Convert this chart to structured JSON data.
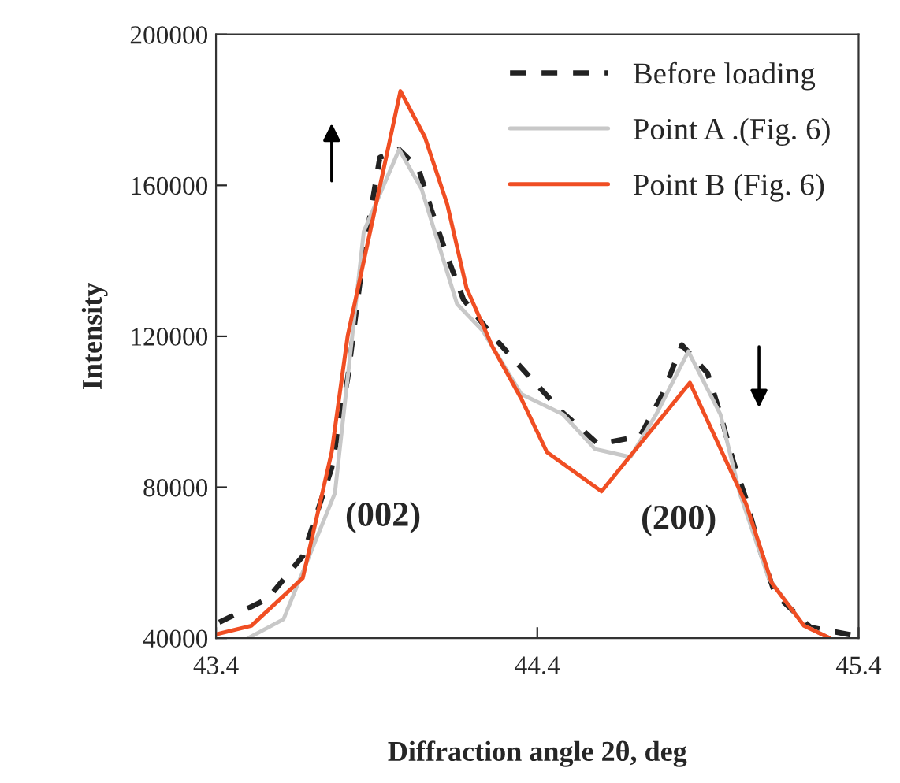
{
  "chart_data": {
    "type": "line",
    "xlabel": "Diffraction angle 2θ, deg",
    "ylabel": "Intensity",
    "xlim": [
      43.4,
      45.4
    ],
    "xticks": [
      43.4,
      44.4,
      45.4
    ],
    "ylim": [
      40000,
      200000
    ],
    "yticks": [
      40000,
      80000,
      120000,
      160000,
      200000
    ],
    "grid": false,
    "legend": "top right",
    "marker": "none",
    "annotations": [
      "(002)",
      "(200)"
    ],
    "series": [
      {
        "name": "Before loading",
        "color": "#222222",
        "line_style": "dashed",
        "x": [
          43.41,
          43.56,
          43.67,
          43.76,
          43.81,
          43.86,
          43.91,
          43.97,
          44.03,
          44.07,
          44.12,
          44.17,
          44.26,
          44.37,
          44.48,
          44.59,
          44.72,
          44.79,
          44.85,
          44.93,
          44.97,
          45.01,
          45.05,
          45.09,
          45.14,
          45.25,
          45.38
        ],
        "values": [
          44200,
          50400,
          61700,
          85100,
          109000,
          142300,
          167400,
          169500,
          164500,
          153600,
          141100,
          129800,
          120200,
          109800,
          99700,
          91400,
          93500,
          104700,
          117700,
          110200,
          99300,
          86800,
          76800,
          64200,
          51700,
          42900,
          40800
        ]
      },
      {
        "name": "Point A .(Fig. 6)",
        "color": "#c8c8c8",
        "line_style": "solid",
        "x": [
          43.5,
          43.61,
          43.77,
          43.86,
          43.97,
          44.04,
          44.15,
          44.23,
          44.35,
          44.48,
          44.58,
          44.69,
          44.77,
          44.87,
          44.97,
          45.03,
          45.12,
          45.23,
          45.31
        ],
        "values": [
          40000,
          45000,
          78400,
          147800,
          169500,
          159000,
          128600,
          121500,
          104700,
          99300,
          90100,
          88000,
          99300,
          116000,
          99300,
          78400,
          55900,
          43300,
          40000
        ]
      },
      {
        "name": "Point B (Fig. 6)",
        "color": "#f04e23",
        "line_style": "solid",
        "x": [
          43.4,
          43.51,
          43.67,
          43.76,
          43.81,
          43.974,
          44.05,
          44.12,
          44.18,
          44.26,
          44.35,
          44.43,
          44.6,
          44.875,
          45.05,
          45.13,
          45.23,
          45.31
        ],
        "values": [
          41000,
          43300,
          55900,
          89300,
          120200,
          185000,
          172800,
          154900,
          132700,
          117300,
          103500,
          89300,
          78900,
          107700,
          75500,
          54600,
          43300,
          40000
        ]
      }
    ]
  }
}
